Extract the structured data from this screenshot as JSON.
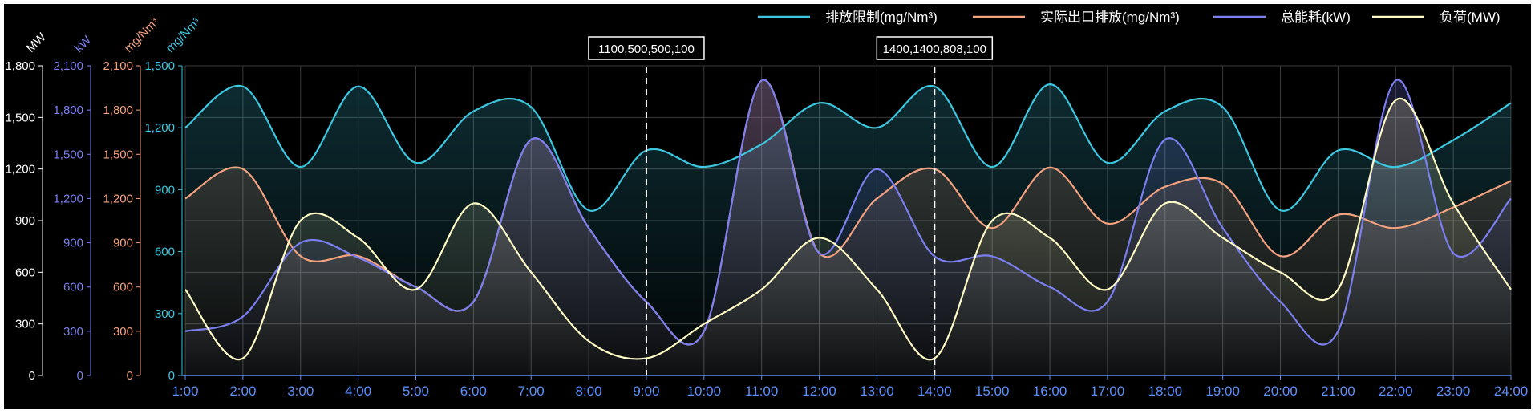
{
  "chart_data": {
    "type": "line",
    "smooth": true,
    "area_fill": true,
    "grid": true,
    "legend_position": "top-right",
    "categories": [
      "1:00",
      "2:00",
      "3:00",
      "4:00",
      "5:00",
      "6:00",
      "7:00",
      "8:00",
      "9:00",
      "10:00",
      "11:00",
      "12:00",
      "13:00",
      "14:00",
      "15:00",
      "16:00",
      "17:00",
      "18:00",
      "19:00",
      "20:00",
      "21:00",
      "22:00",
      "23:00",
      "24:00"
    ],
    "axes": [
      {
        "id": "mw",
        "unit": "MW",
        "color": "#ffffff",
        "min": 0,
        "max": 1800,
        "ticks": [
          "0",
          "300",
          "600",
          "900",
          "1,200",
          "1,500",
          "1,800"
        ]
      },
      {
        "id": "kw",
        "unit": "kW",
        "color": "#7b7ff0",
        "min": 0,
        "max": 2100,
        "ticks": [
          "0",
          "300",
          "600",
          "900",
          "1,200",
          "1,500",
          "1,800",
          "2,100"
        ]
      },
      {
        "id": "emis",
        "unit": "mg/Nm³",
        "color": "#f4a27f",
        "min": 0,
        "max": 2100,
        "ticks": [
          "0",
          "300",
          "600",
          "900",
          "1,200",
          "1,500",
          "1,800",
          "2,100"
        ]
      },
      {
        "id": "limit",
        "unit": "mg/Nm³",
        "color": "#3cc6e0",
        "min": 0,
        "max": 1500,
        "ticks": [
          "0",
          "300",
          "600",
          "900",
          "1,200",
          "1,500"
        ]
      }
    ],
    "series": [
      {
        "name": "排放限制(mg/Nm³)",
        "axis": "limit",
        "color": "#3cc6e0",
        "values": [
          1200,
          1400,
          1010,
          1400,
          1030,
          1280,
          1300,
          800,
          1090,
          1010,
          1120,
          1320,
          1200,
          1400,
          1010,
          1410,
          1030,
          1280,
          1300,
          800,
          1090,
          1010,
          1140,
          1320
        ]
      },
      {
        "name": "实际出口排放(mg/Nm³)",
        "axis": "emis",
        "color": "#f4a27f",
        "values": [
          1200,
          1400,
          810,
          810,
          600,
          500,
          1600,
          1000,
          500,
          300,
          2000,
          830,
          1200,
          1400,
          1000,
          1410,
          1030,
          1280,
          1300,
          810,
          1090,
          1000,
          1140,
          1320
        ]
      },
      {
        "name": "总能耗(kW)",
        "axis": "kw",
        "color": "#7b7ff0",
        "values": [
          300,
          400,
          900,
          800,
          600,
          500,
          1600,
          1000,
          500,
          300,
          2000,
          830,
          1400,
          808,
          808,
          600,
          500,
          1600,
          1000,
          500,
          300,
          2000,
          830,
          1200
        ]
      },
      {
        "name": "负荷(MW)",
        "axis": "mw",
        "color": "#fffbc4",
        "values": [
          500,
          100,
          900,
          800,
          500,
          1000,
          600,
          200,
          100,
          300,
          500,
          800,
          500,
          100,
          900,
          800,
          500,
          1000,
          800,
          600,
          500,
          1600,
          1000,
          500
        ]
      }
    ],
    "markers": [
      {
        "x": "9:00",
        "label": "1100,500,500,100"
      },
      {
        "x": "14:00",
        "label": "1400,1400,808,100"
      }
    ]
  }
}
